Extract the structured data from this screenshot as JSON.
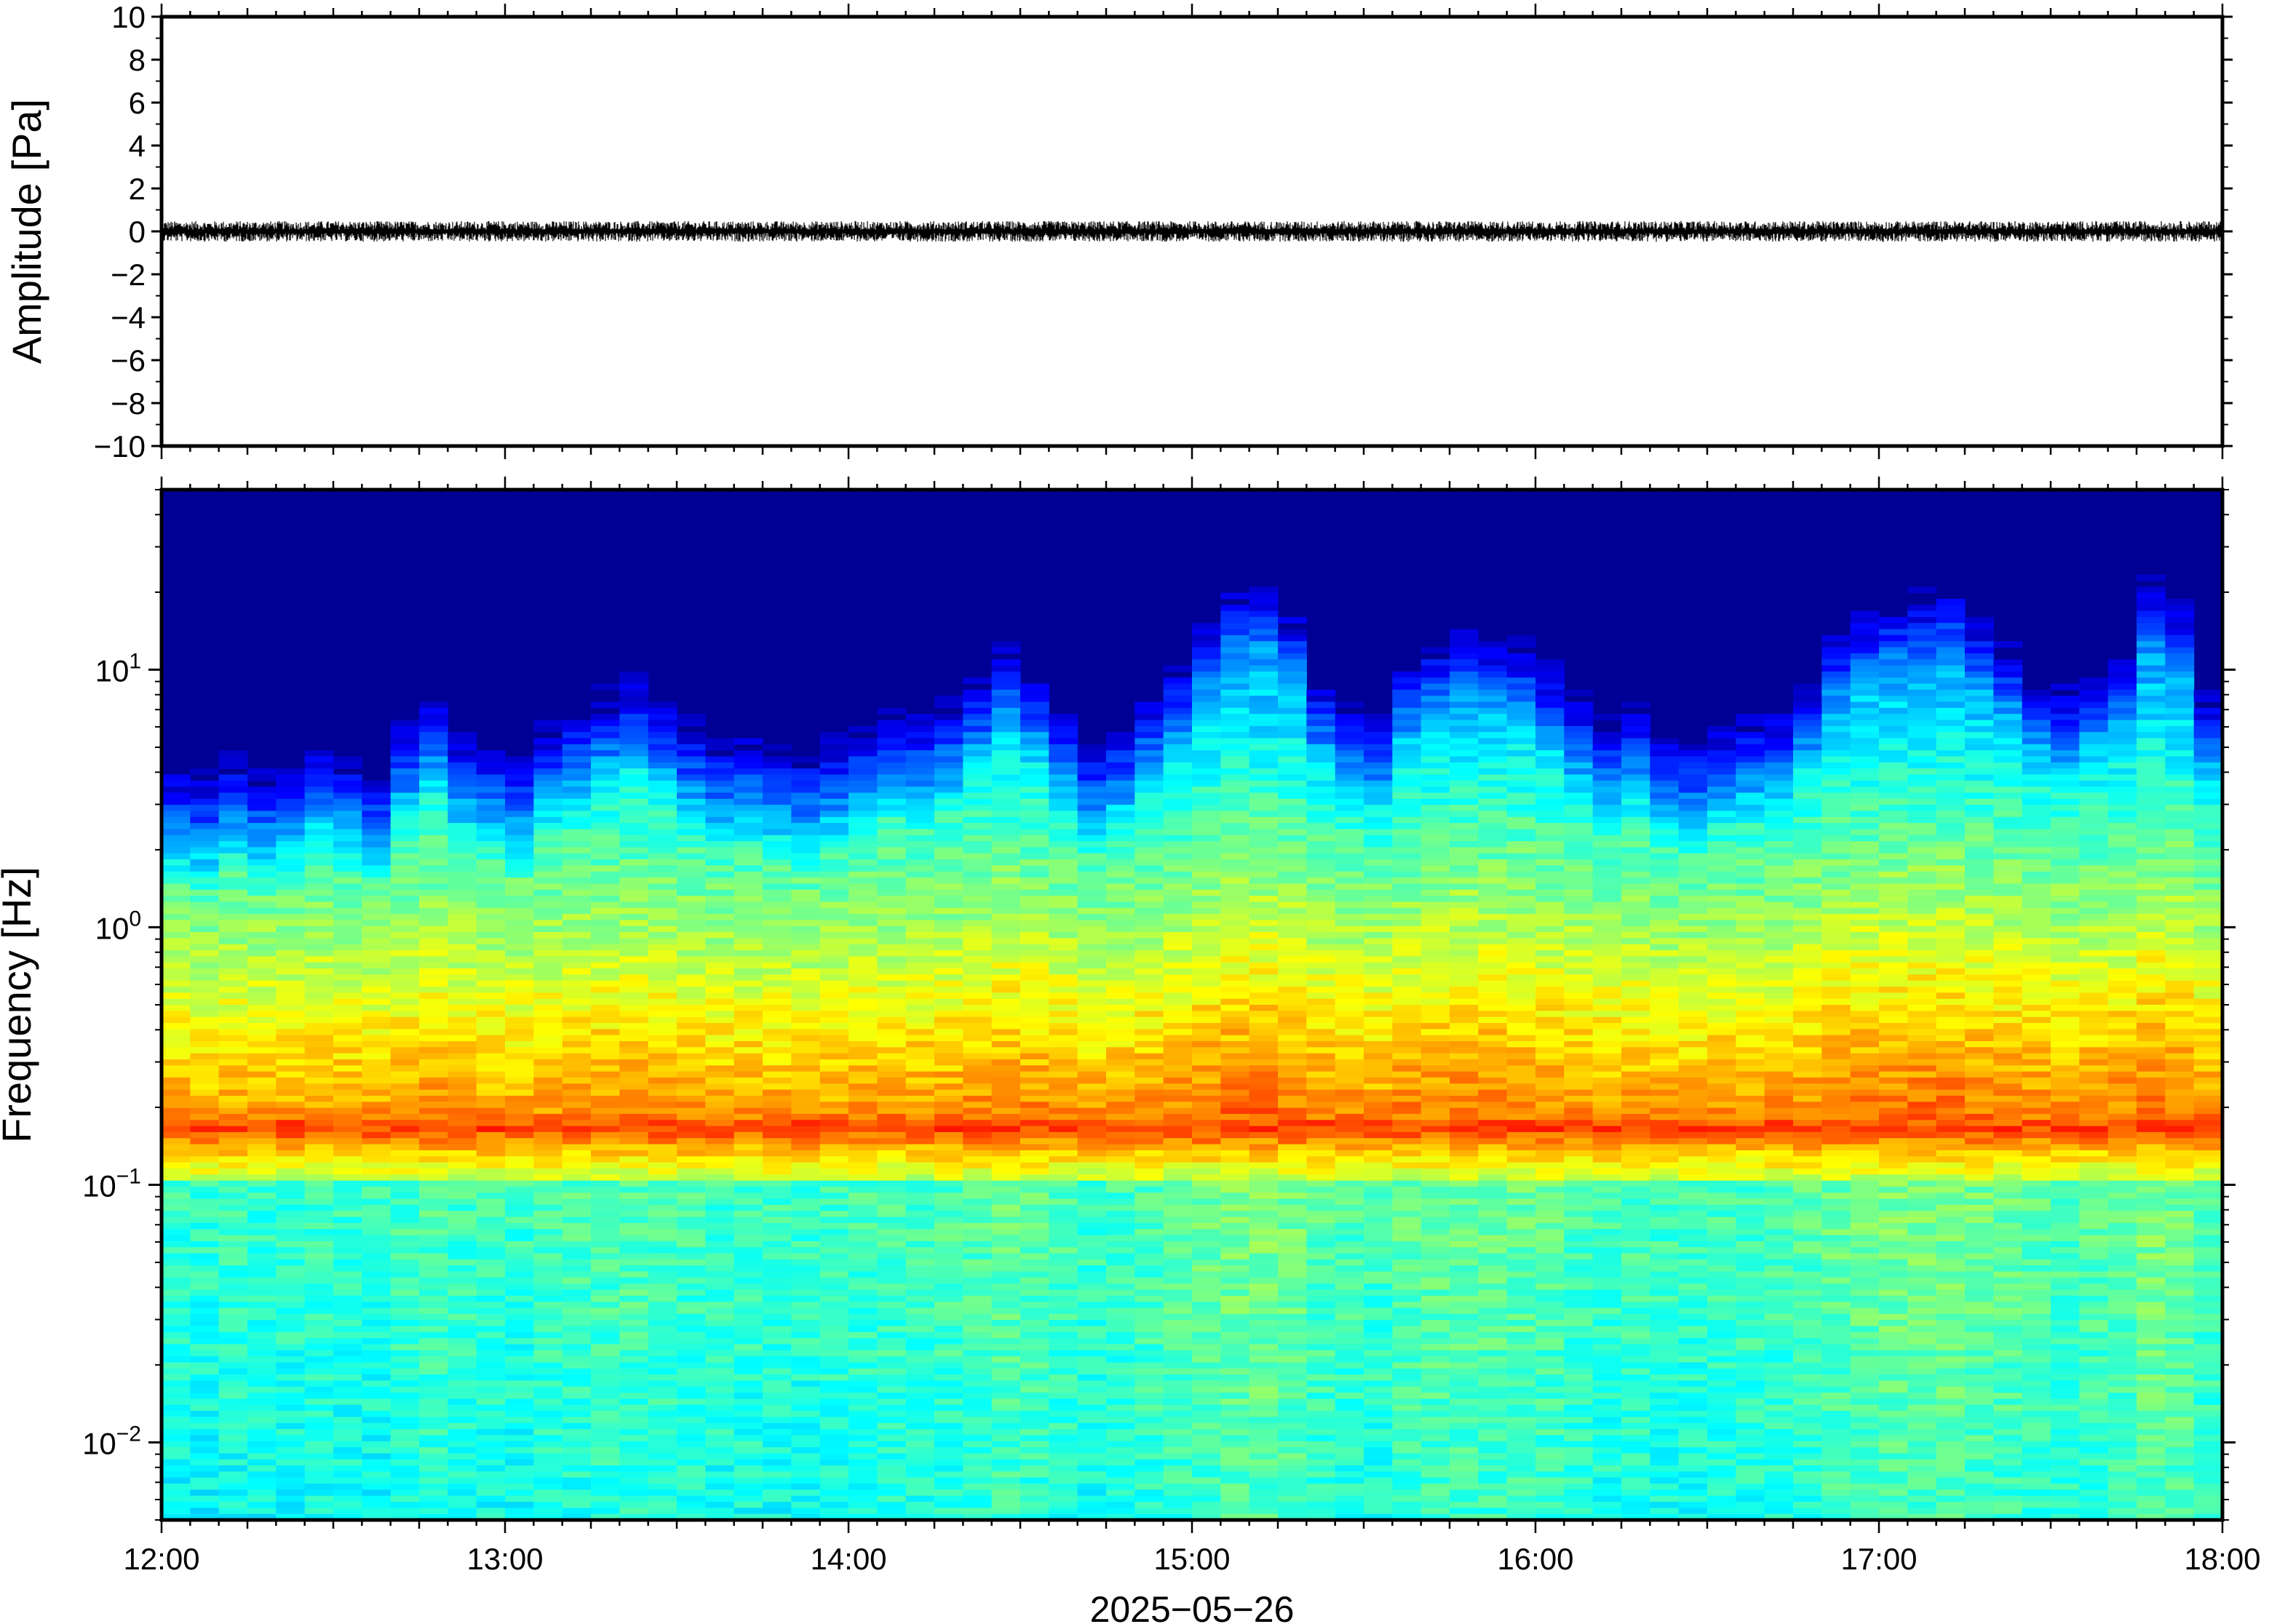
{
  "figure": {
    "date_label": "2025−05−26"
  },
  "chart_data": [
    {
      "type": "line",
      "ylabel": "Amplitude [Pa]",
      "xlabel": "",
      "xlim": [
        "12:00",
        "18:00"
      ],
      "ylim": [
        -10,
        10
      ],
      "y_ticks": [
        10,
        8,
        6,
        4,
        2,
        0,
        -2,
        -4,
        -6,
        -8,
        -10
      ],
      "y_tick_labels": [
        "10",
        "8",
        "6",
        "4",
        "2",
        "0",
        "−2",
        "−4",
        "−6",
        "−8",
        "−10"
      ],
      "grid": false,
      "series": [
        {
          "x_range": [
            "12:00",
            "18:00"
          ],
          "mean": 0,
          "peak_abs": 0.4,
          "color": "#000000"
        }
      ]
    },
    {
      "type": "heatmap",
      "ylabel": "Frequency [Hz]",
      "xlabel": "2025−05−26",
      "x_ticks": [
        "12:00",
        "13:00",
        "14:00",
        "15:00",
        "16:00",
        "17:00",
        "18:00"
      ],
      "y_scale": "log",
      "ylim": [
        0.005,
        50
      ],
      "y_ticks": [
        10,
        1,
        0.1,
        0.01
      ],
      "y_tick_labels": [
        {
          "base": "10",
          "exp": "1"
        },
        {
          "base": "10",
          "exp": "0"
        },
        {
          "base": "10",
          "exp": "−1"
        },
        {
          "base": "10",
          "exp": "−2"
        }
      ],
      "colormap": "jet",
      "dominant_band_hz": [
        0.14,
        0.2
      ],
      "time_columns": 72,
      "column_activity": [
        0.3,
        0.28,
        0.35,
        0.3,
        0.32,
        0.4,
        0.35,
        0.3,
        0.45,
        0.55,
        0.42,
        0.38,
        0.35,
        0.45,
        0.5,
        0.55,
        0.6,
        0.52,
        0.45,
        0.4,
        0.42,
        0.38,
        0.36,
        0.4,
        0.44,
        0.5,
        0.48,
        0.52,
        0.6,
        0.72,
        0.62,
        0.5,
        0.4,
        0.45,
        0.55,
        0.65,
        0.78,
        0.9,
        0.92,
        0.82,
        0.6,
        0.52,
        0.48,
        0.66,
        0.72,
        0.76,
        0.74,
        0.72,
        0.64,
        0.54,
        0.46,
        0.5,
        0.42,
        0.4,
        0.44,
        0.48,
        0.5,
        0.6,
        0.75,
        0.82,
        0.86,
        0.88,
        0.9,
        0.8,
        0.72,
        0.62,
        0.58,
        0.64,
        0.7,
        0.92,
        0.85,
        0.55
      ],
      "grid": false
    }
  ]
}
